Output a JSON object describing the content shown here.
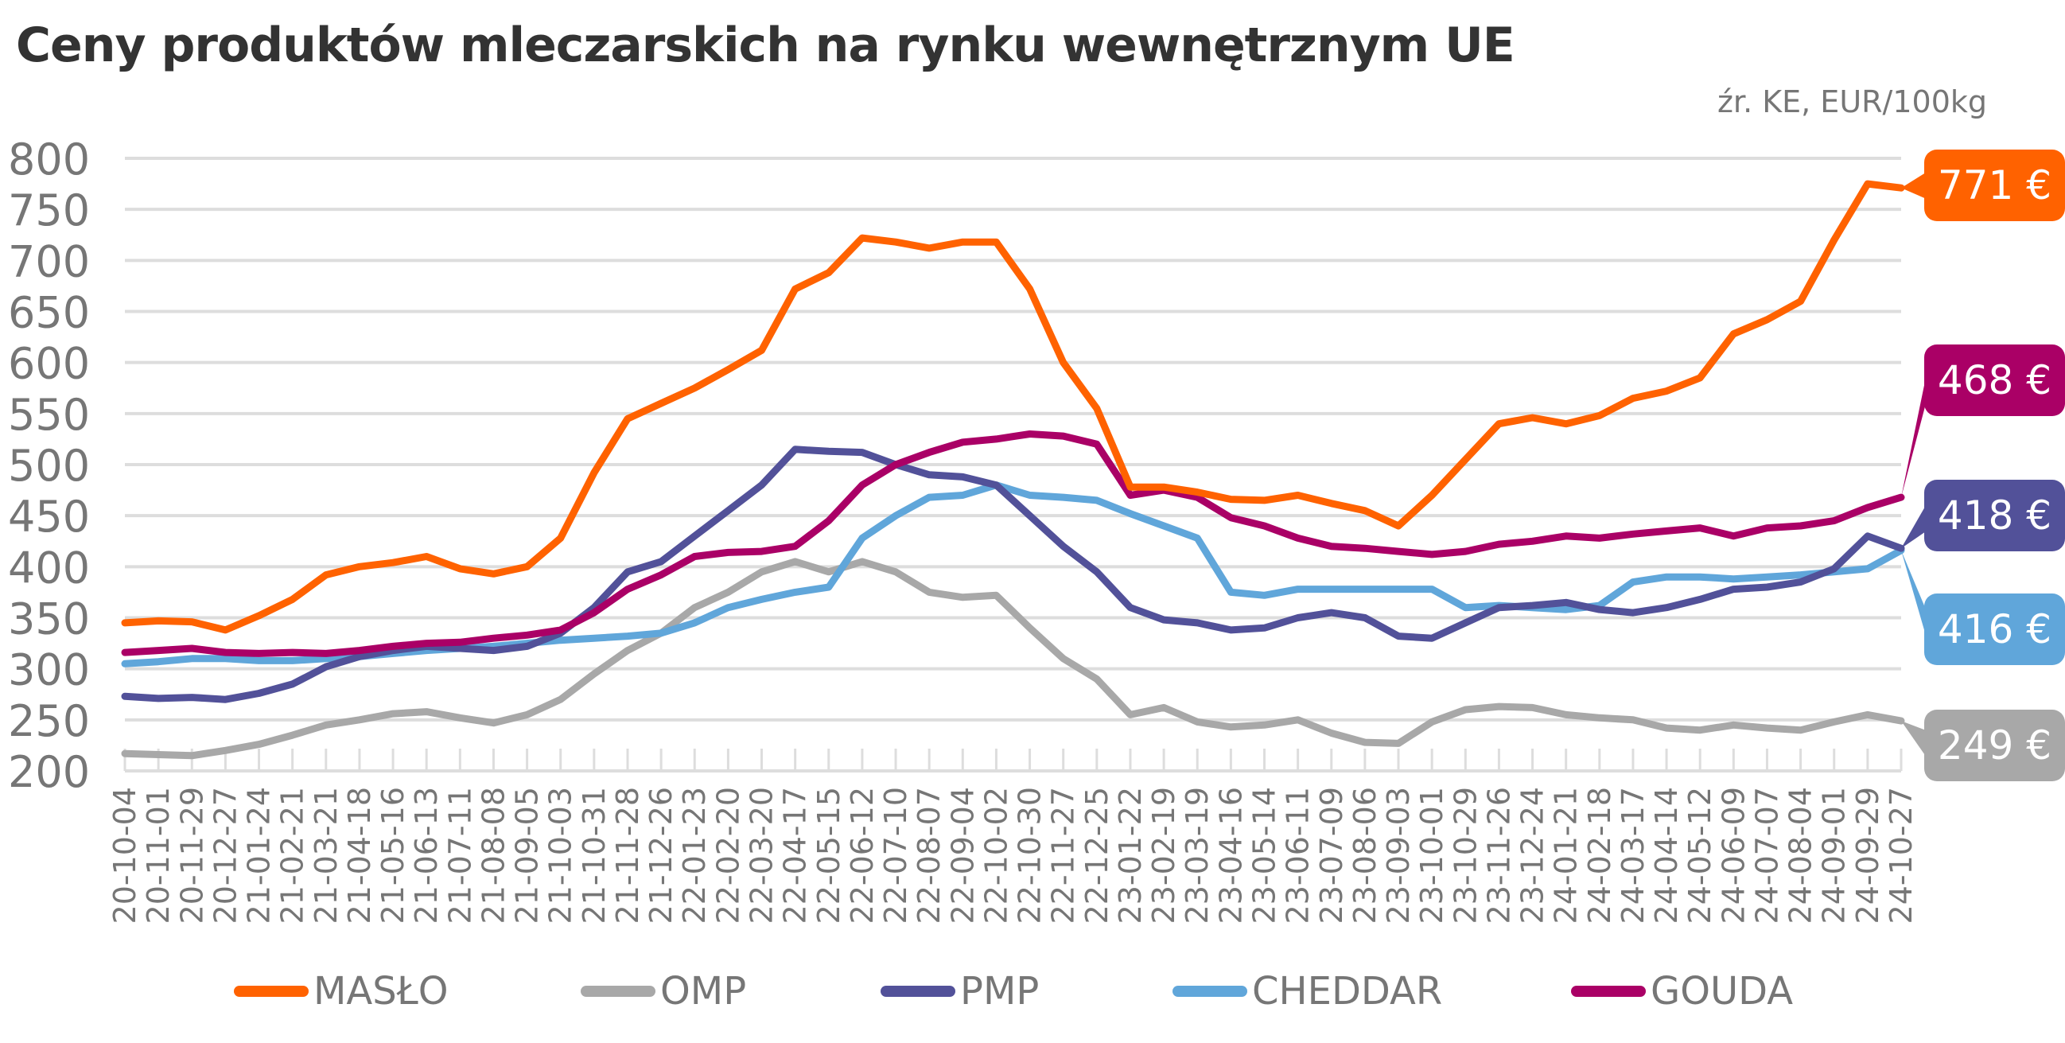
{
  "header": {
    "title": "Ceny produktów mleczarskich na rynku wewnętrznym UE",
    "subtitle": "źr. KE, EUR/100kg"
  },
  "chart_data": {
    "type": "line",
    "title": "Ceny produktów mleczarskich na rynku wewnętrznym UE",
    "subtitle": "źr. KE, EUR/100kg",
    "xlabel": "",
    "ylabel": "EUR/100kg",
    "ylim": [
      200,
      800
    ],
    "yticks": [
      200,
      250,
      300,
      350,
      400,
      450,
      500,
      550,
      600,
      650,
      700,
      750,
      800
    ],
    "grid": true,
    "legend_position": "bottom",
    "x": [
      "20-10-04",
      "20-11-01",
      "20-11-29",
      "20-12-27",
      "21-01-24",
      "21-02-21",
      "21-03-21",
      "21-04-18",
      "21-05-16",
      "21-06-13",
      "21-07-11",
      "21-08-08",
      "21-09-05",
      "21-10-03",
      "21-10-31",
      "21-11-28",
      "21-12-26",
      "22-01-23",
      "22-02-20",
      "22-03-20",
      "22-04-17",
      "22-05-15",
      "22-06-12",
      "22-07-10",
      "22-08-07",
      "22-09-04",
      "22-10-02",
      "22-10-30",
      "22-11-27",
      "22-12-25",
      "23-01-22",
      "23-02-19",
      "23-03-19",
      "23-04-16",
      "23-05-14",
      "23-06-11",
      "23-07-09",
      "23-08-06",
      "23-09-03",
      "23-10-01",
      "23-10-29",
      "23-11-26",
      "23-12-24",
      "24-01-21",
      "24-02-18",
      "24-03-17",
      "24-04-14",
      "24-05-12",
      "24-06-09",
      "24-07-07",
      "24-08-04",
      "24-09-01",
      "24-09-29",
      "24-10-27"
    ],
    "series": [
      {
        "name": "MASŁO",
        "color": "#FF6200",
        "last_value_label": "771 €",
        "values": [
          345,
          347,
          346,
          338,
          352,
          368,
          392,
          400,
          404,
          410,
          398,
          393,
          400,
          428,
          492,
          545,
          560,
          575,
          593,
          612,
          672,
          688,
          722,
          718,
          712,
          718,
          718,
          672,
          600,
          555,
          478,
          478,
          473,
          466,
          465,
          470,
          462,
          455,
          440,
          470,
          505,
          540,
          546,
          540,
          548,
          565,
          572,
          585,
          628,
          642,
          660,
          720,
          775,
          771
        ]
      },
      {
        "name": "OMP",
        "color": "#A8A8A8",
        "last_value_label": "249 €",
        "values": [
          217,
          216,
          215,
          220,
          226,
          235,
          245,
          250,
          256,
          258,
          252,
          247,
          255,
          270,
          295,
          318,
          335,
          360,
          375,
          395,
          405,
          395,
          405,
          395,
          375,
          370,
          372,
          340,
          310,
          290,
          255,
          262,
          248,
          243,
          245,
          250,
          237,
          228,
          227,
          248,
          260,
          263,
          262,
          255,
          252,
          250,
          242,
          240,
          245,
          242,
          240,
          248,
          255,
          249
        ]
      },
      {
        "name": "PMP",
        "color": "#525199",
        "last_value_label": "418 €",
        "values": [
          273,
          271,
          272,
          270,
          276,
          285,
          302,
          312,
          318,
          322,
          320,
          318,
          322,
          335,
          360,
          395,
          405,
          430,
          455,
          480,
          515,
          513,
          512,
          500,
          490,
          488,
          480,
          450,
          420,
          395,
          360,
          348,
          345,
          338,
          340,
          350,
          355,
          350,
          332,
          330,
          345,
          360,
          362,
          365,
          358,
          355,
          360,
          368,
          378,
          380,
          385,
          398,
          430,
          418
        ]
      },
      {
        "name": "CHEDDAR",
        "color": "#60A6DA",
        "last_value_label": "416 €",
        "values": [
          305,
          307,
          310,
          310,
          308,
          308,
          310,
          312,
          315,
          318,
          320,
          322,
          325,
          328,
          330,
          332,
          335,
          345,
          360,
          368,
          375,
          380,
          428,
          450,
          468,
          470,
          480,
          470,
          468,
          465,
          452,
          440,
          428,
          375,
          372,
          378,
          378,
          378,
          378,
          378,
          360,
          362,
          360,
          358,
          362,
          385,
          390,
          390,
          388,
          390,
          392,
          395,
          398,
          416
        ]
      },
      {
        "name": "GOUDA",
        "color": "#AA0066",
        "last_value_label": "468 €",
        "values": [
          316,
          318,
          320,
          316,
          315,
          316,
          315,
          318,
          322,
          325,
          326,
          330,
          333,
          338,
          355,
          378,
          392,
          410,
          414,
          415,
          420,
          445,
          480,
          500,
          512,
          522,
          525,
          530,
          528,
          520,
          470,
          475,
          468,
          448,
          440,
          428,
          420,
          418,
          415,
          412,
          415,
          422,
          425,
          430,
          428,
          432,
          435,
          438,
          430,
          438,
          440,
          445,
          458,
          468
        ]
      }
    ]
  },
  "legend": [
    {
      "label": "MASŁO",
      "color": "#FF6200"
    },
    {
      "label": "OMP",
      "color": "#A8A8A8"
    },
    {
      "label": "PMP",
      "color": "#525199"
    },
    {
      "label": "CHEDDAR",
      "color": "#60A6DA"
    },
    {
      "label": "GOUDA",
      "color": "#AA0066"
    }
  ]
}
